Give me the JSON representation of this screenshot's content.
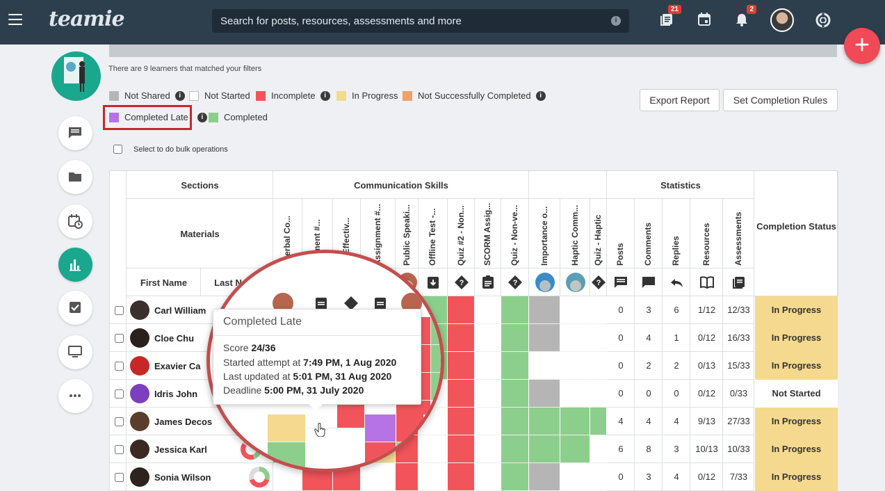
{
  "app": {
    "logo": "teamie"
  },
  "search": {
    "placeholder": "Search for posts, resources, assessments and more",
    "info_icon": "i"
  },
  "topbar": {
    "badges": {
      "posts": "21",
      "notifications": "2"
    }
  },
  "fab_label": "+",
  "filters_text": "There are 9 learners that matched your filters",
  "legend": [
    {
      "label": "Not Shared",
      "color": "#b5b5b5",
      "info": "i"
    },
    {
      "label": "Not Started",
      "color": "#ffffff"
    },
    {
      "label": "Incomplete",
      "color": "#f2545b",
      "info": "i"
    },
    {
      "label": "In Progress",
      "color": "#f5d98e"
    },
    {
      "label": "Not Successfully Completed",
      "color": "#f0a06c",
      "info": "i"
    },
    {
      "label": "Completed Late",
      "color": "#b573e5",
      "info": "i"
    },
    {
      "label": "Completed",
      "color": "#8ccf8c"
    }
  ],
  "buttons": {
    "export": "Export Report",
    "set_rules": "Set Completion Rules"
  },
  "bulk_label": "Select to do bulk operations",
  "table": {
    "headers": {
      "sections": "Sections",
      "materials": "Materials",
      "first_name": "First Name",
      "last_name": "Last Name",
      "communication_skills": "Communication Skills",
      "statistics": "Statistics",
      "completion_status": "Completion Status"
    },
    "material_labels": [
      "nverbal Co...",
      "ignment #...",
      "z - Effectiv...",
      "Assignment #...",
      "Public Speaki...",
      "Offline Test -...",
      "Quiz #2 - Non...",
      "SCORM Assig...",
      "Quiz - Non-ve...",
      "Importance o...",
      "Haptic Comm...",
      "Quiz - Haptic"
    ],
    "stat_labels": [
      "Posts",
      "Comments",
      "Replies",
      "Resources",
      "Assessments"
    ],
    "rows": [
      {
        "name": "Carl William",
        "stats": [
          "0",
          "3",
          "6",
          "1/12",
          "12/33"
        ],
        "status": "In Progress"
      },
      {
        "name": "Cloe Chu",
        "stats": [
          "0",
          "4",
          "1",
          "0/12",
          "16/33"
        ],
        "status": "In Progress"
      },
      {
        "name": "Exavier Ca",
        "stats": [
          "0",
          "2",
          "2",
          "0/13",
          "15/33"
        ],
        "status": "In Progress"
      },
      {
        "name": "Idris John",
        "stats": [
          "0",
          "0",
          "0",
          "0/12",
          "0/33"
        ],
        "status": "Not Started"
      },
      {
        "name": "James Decos",
        "stats": [
          "4",
          "4",
          "4",
          "9/13",
          "27/33"
        ],
        "status": "In Progress"
      },
      {
        "name": "Jessica Karl",
        "stats": [
          "6",
          "8",
          "3",
          "10/13",
          "10/33"
        ],
        "status": "In Progress"
      },
      {
        "name": "Sonia Wilson",
        "stats": [
          "0",
          "3",
          "4",
          "0/12",
          "7/33"
        ],
        "status": "In Progress"
      }
    ]
  },
  "tooltip": {
    "title": "Completed Late",
    "score_label": "Score ",
    "score": "24/36",
    "started_label": "Started attempt at ",
    "started": "7:49 PM, 1 Aug 2020",
    "updated_label": "Last updated at ",
    "updated": "5:01 PM, 31 Aug 2020",
    "deadline_label": "Deadline ",
    "deadline": "5:00 PM, 31 July 2020"
  }
}
